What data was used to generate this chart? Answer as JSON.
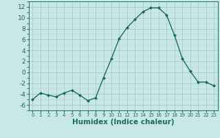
{
  "x": [
    0,
    1,
    2,
    3,
    4,
    5,
    6,
    7,
    8,
    9,
    10,
    11,
    12,
    13,
    14,
    15,
    16,
    17,
    18,
    19,
    20,
    21,
    22,
    23
  ],
  "y": [
    -5,
    -3.8,
    -4.2,
    -4.5,
    -3.8,
    -3.3,
    -4.2,
    -5.2,
    -4.7,
    -1.0,
    2.5,
    6.2,
    8.2,
    9.7,
    11.1,
    11.8,
    11.8,
    10.5,
    6.8,
    2.5,
    0.2,
    -1.8,
    -1.8,
    -2.5
  ],
  "line_color": "#1a6b5a",
  "marker": "D",
  "marker_size": 2.0,
  "bg_color": "#c8e8e5",
  "grid_minor_color": "#b8d8d5",
  "grid_major_color": "#a8c8c5",
  "xlabel": "Humidex (Indice chaleur)",
  "xlim": [
    -0.5,
    23.5
  ],
  "ylim": [
    -7,
    13
  ],
  "yticks": [
    -6,
    -4,
    -2,
    0,
    2,
    4,
    6,
    8,
    10,
    12
  ],
  "xticks": [
    0,
    1,
    2,
    3,
    4,
    5,
    6,
    7,
    8,
    9,
    10,
    11,
    12,
    13,
    14,
    15,
    16,
    17,
    18,
    19,
    20,
    21,
    22,
    23
  ],
  "ytick_fontsize": 6.5,
  "xtick_fontsize": 5.0,
  "label_fontsize": 7.5,
  "linewidth": 1.0
}
